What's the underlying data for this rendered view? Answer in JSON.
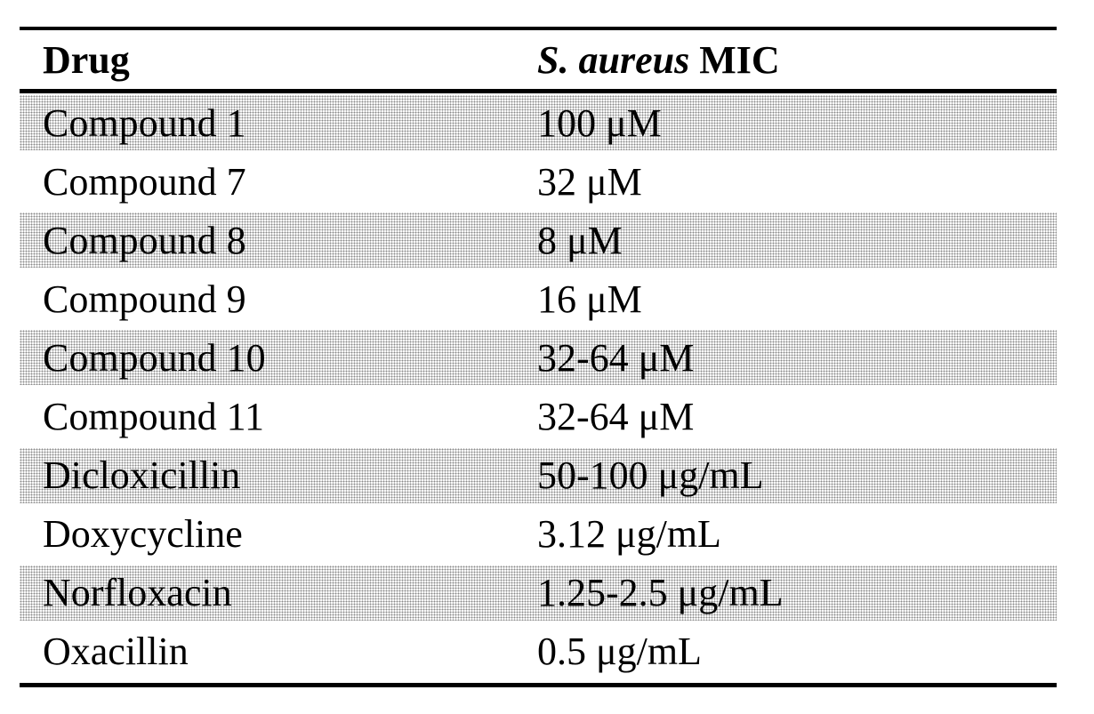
{
  "table": {
    "header": {
      "drug": "Drug",
      "mic_italic": "S. aureus",
      "mic_rest": " MIC"
    },
    "rows": [
      {
        "drug": "Compound 1",
        "mic": "100 μM"
      },
      {
        "drug": "Compound 7",
        "mic": "32 μM"
      },
      {
        "drug": "Compound 8",
        "mic": "8 μM"
      },
      {
        "drug": "Compound 9",
        "mic": "16 μM"
      },
      {
        "drug": "Compound 10",
        "mic": "32-64 μM"
      },
      {
        "drug": "Compound 11",
        "mic": "32-64 μM"
      },
      {
        "drug": "Dicloxicillin",
        "mic": "50-100 μg/mL"
      },
      {
        "drug": "Doxycycline",
        "mic": "3.12 μg/mL"
      },
      {
        "drug": "Norfloxacin",
        "mic": "1.25-2.5 μg/mL"
      },
      {
        "drug": "Oxacillin",
        "mic": "0.5 μg/mL"
      }
    ],
    "shading_color": "#8a8a8a"
  }
}
